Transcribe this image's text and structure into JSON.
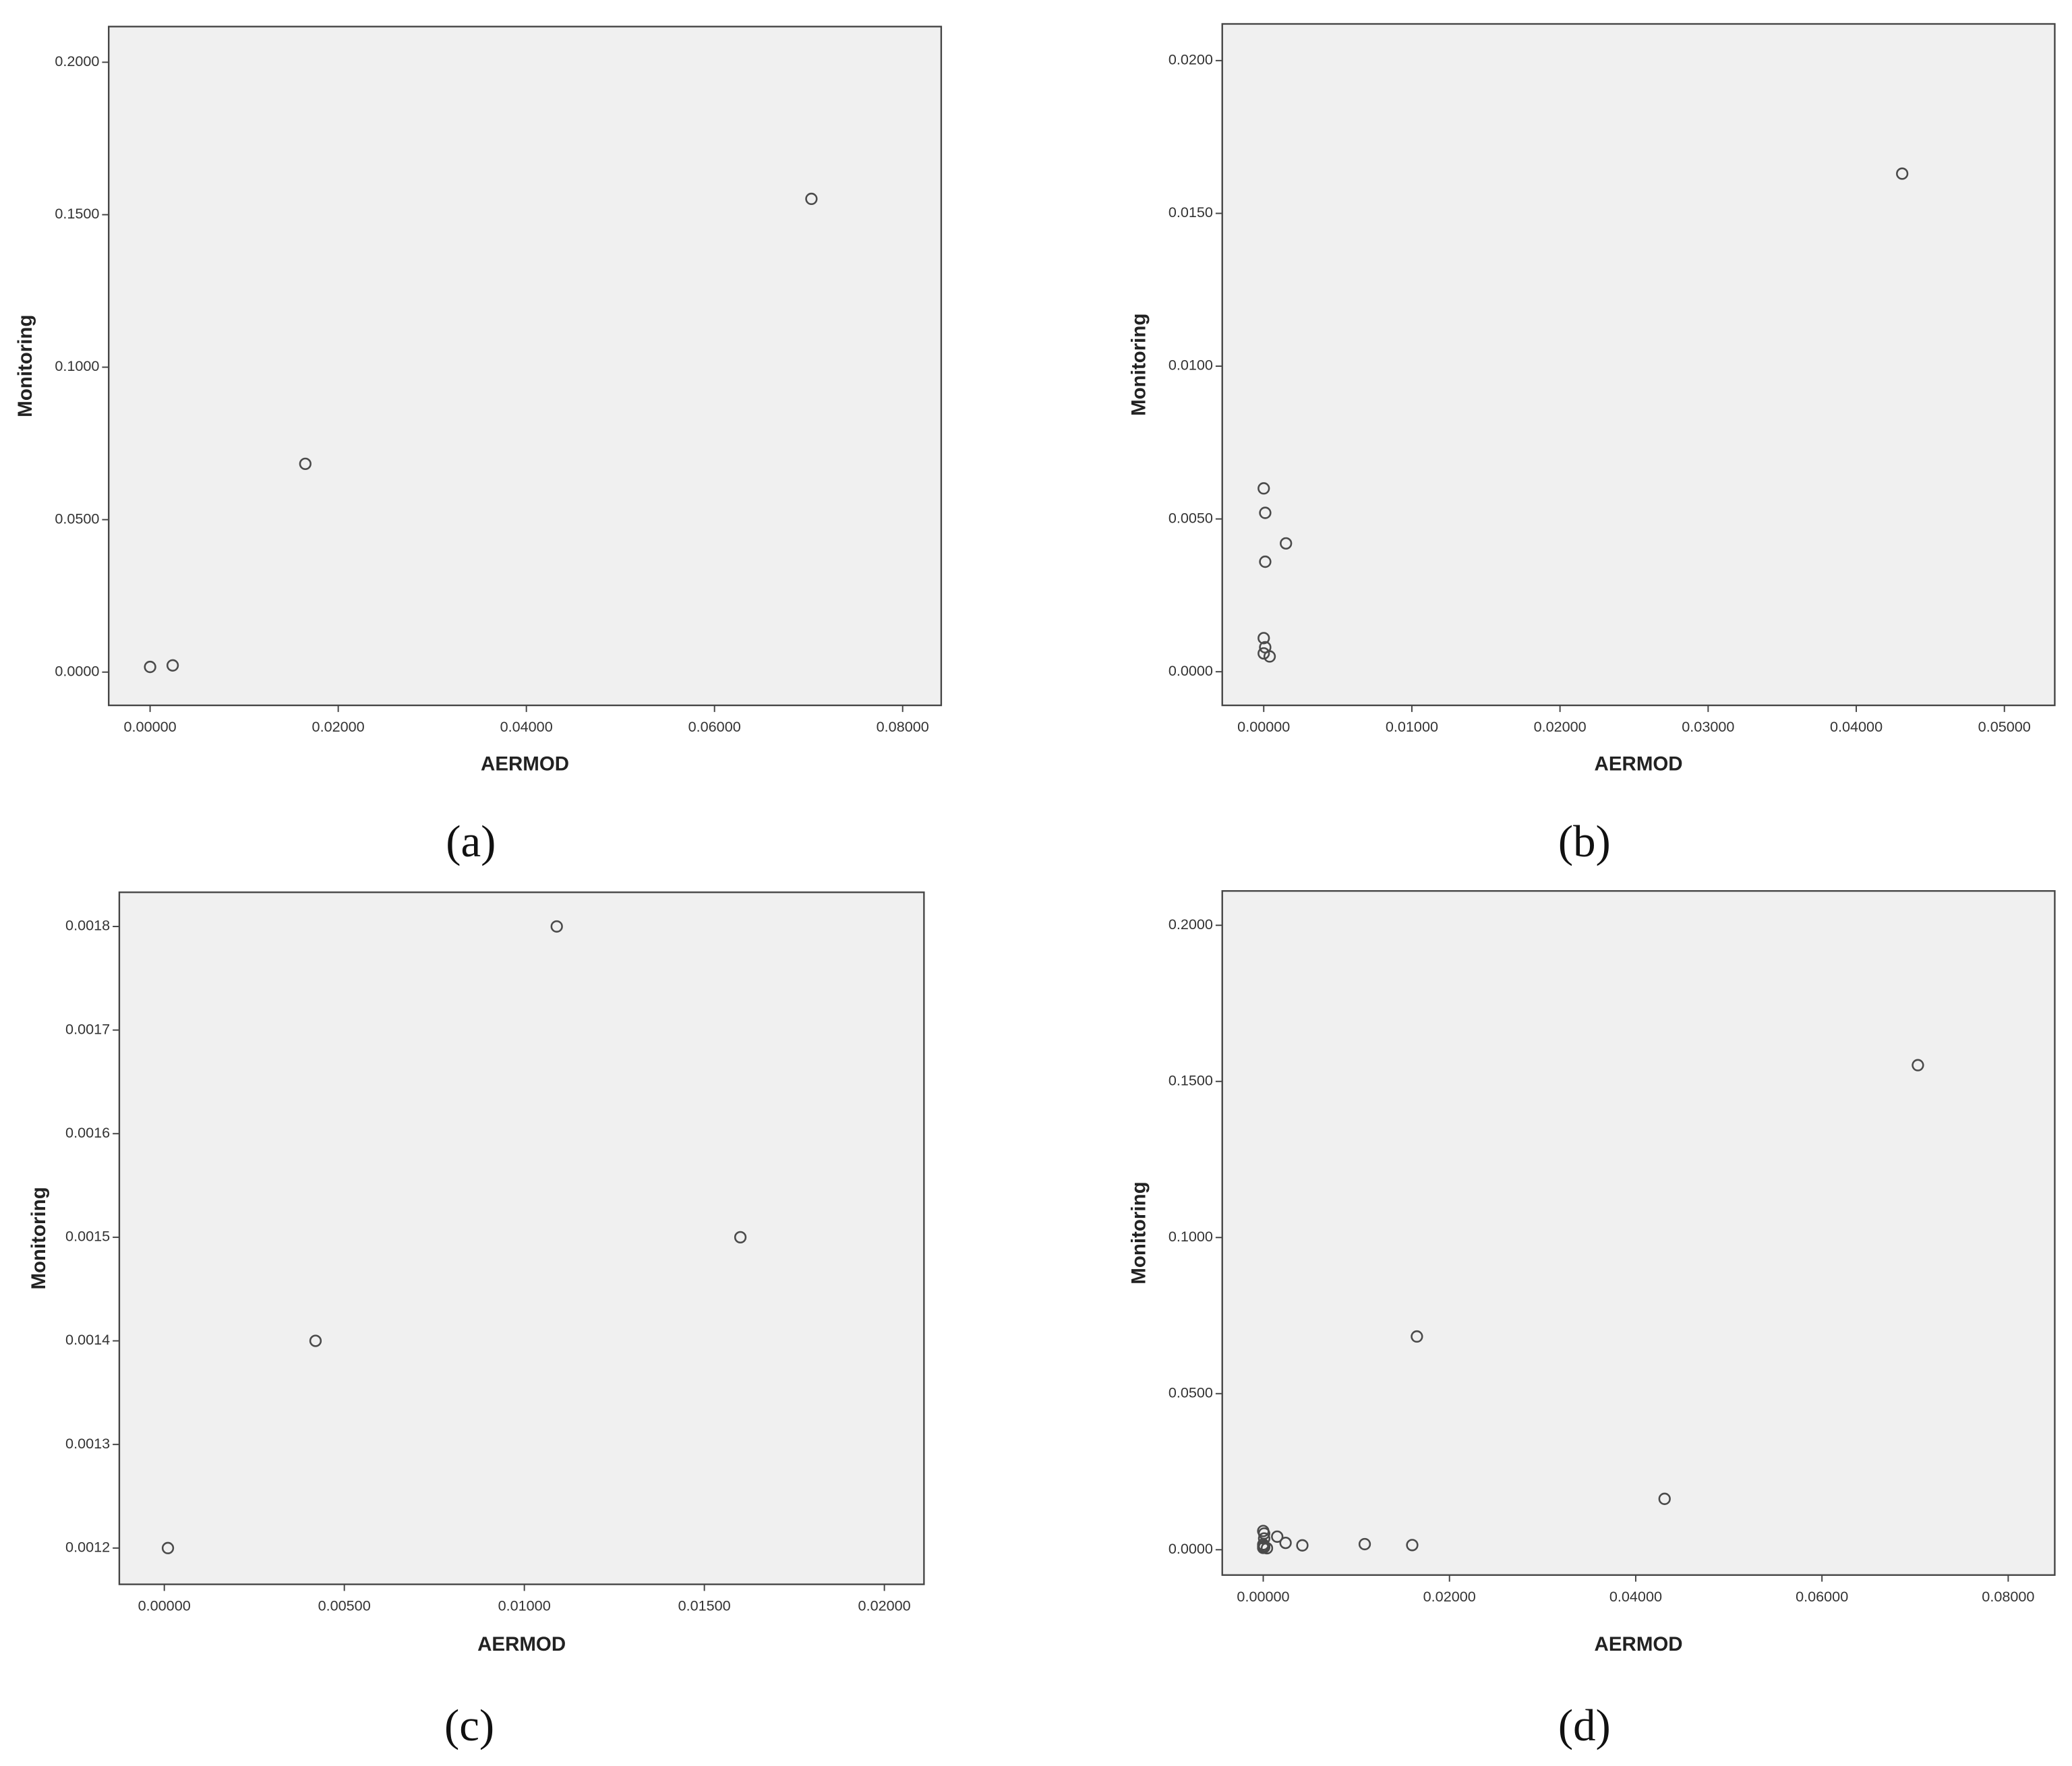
{
  "chart_data": [
    {
      "type": "scatter",
      "label": "(a)",
      "x_label": "AERMOD",
      "y_label": "Monitoring",
      "color": "#4a4a4a",
      "background": "#f0f0f0",
      "x": [
        0.0,
        0.0024,
        0.0165,
        0.0703
      ],
      "values": [
        0.0017,
        0.0022,
        0.0683,
        0.1552
      ],
      "xlim": [
        -0.0044,
        0.0841
      ],
      "ylim": [
        -0.0109,
        0.2117
      ],
      "xticks": [
        {
          "value": 0,
          "label": "0.00000"
        },
        {
          "value": 0.02,
          "label": "0.02000"
        },
        {
          "value": 0.04,
          "label": "0.04000"
        },
        {
          "value": 0.06,
          "label": "0.06000"
        },
        {
          "value": 0.08,
          "label": "0.08000"
        }
      ],
      "yticks": [
        {
          "value": 0,
          "label": "0.0000"
        },
        {
          "value": 0.05,
          "label": "0.0500"
        },
        {
          "value": 0.1,
          "label": "0.1000"
        },
        {
          "value": 0.15,
          "label": "0.1500"
        },
        {
          "value": 0.2,
          "label": "0.2000"
        }
      ]
    },
    {
      "type": "scatter",
      "label": "(b)",
      "x_label": "AERMOD",
      "y_label": "Monitoring",
      "color": "#4a4a4a",
      "background": "#f0f0f0",
      "x": [
        0.0431,
        0.0,
        0.0001,
        0.0015,
        0.0001,
        0.0,
        0.0001,
        0.0,
        0.0004
      ],
      "values": [
        0.0163,
        0.006,
        0.0052,
        0.0042,
        0.0036,
        0.0011,
        0.0008,
        0.0006,
        0.0005
      ],
      "xlim": [
        -0.0028,
        0.0534
      ],
      "ylim": [
        -0.0011,
        0.0212
      ],
      "xticks": [
        {
          "value": 0,
          "label": "0.00000"
        },
        {
          "value": 0.01,
          "label": "0.01000"
        },
        {
          "value": 0.02,
          "label": "0.02000"
        },
        {
          "value": 0.03,
          "label": "0.03000"
        },
        {
          "value": 0.04,
          "label": "0.04000"
        },
        {
          "value": 0.05,
          "label": "0.05000"
        }
      ],
      "yticks": [
        {
          "value": 0,
          "label": "0.0000"
        },
        {
          "value": 0.005,
          "label": "0.0050"
        },
        {
          "value": 0.01,
          "label": "0.0100"
        },
        {
          "value": 0.015,
          "label": "0.0150"
        },
        {
          "value": 0.02,
          "label": "0.0200"
        }
      ]
    },
    {
      "type": "scatter",
      "label": "(c)",
      "x_label": "AERMOD",
      "y_label": "Monitoring",
      "color": "#4a4a4a",
      "background": "#f0f0f0",
      "x": [
        0.0001,
        0.0042,
        0.0109,
        0.016
      ],
      "values": [
        0.0012,
        0.0014,
        0.0018,
        0.0015
      ],
      "xlim": [
        -0.00125,
        0.0211
      ],
      "ylim": [
        0.001165,
        0.001833
      ],
      "xticks": [
        {
          "value": 0,
          "label": "0.00000"
        },
        {
          "value": 0.005,
          "label": "0.00500"
        },
        {
          "value": 0.01,
          "label": "0.01000"
        },
        {
          "value": 0.015,
          "label": "0.01500"
        },
        {
          "value": 0.02,
          "label": "0.02000"
        }
      ],
      "yticks": [
        0.0012,
        0.0013,
        0.0014,
        0.0015,
        0.0016,
        0.0017,
        0.0018
      ]
    },
    {
      "type": "scatter",
      "label": "(d)",
      "x_label": "AERMOD",
      "y_label": "Monitoring",
      "color": "#4a4a4a",
      "background": "#f0f0f0",
      "x": [
        0.0,
        0.0024,
        0.0165,
        0.0703,
        0.0431,
        0.0,
        0.0001,
        0.0015,
        0.0001,
        0.0,
        0.0001,
        0.0,
        0.0004,
        0.0001,
        0.0042,
        0.0109,
        0.016
      ],
      "values": [
        0.0017,
        0.0022,
        0.0683,
        0.1552,
        0.0163,
        0.006,
        0.0052,
        0.0042,
        0.0036,
        0.0011,
        0.0008,
        0.0006,
        0.0005,
        0.0012,
        0.0014,
        0.0018,
        0.0015
      ],
      "xlim": [
        -0.0044,
        0.085
      ],
      "ylim": [
        -0.0081,
        0.211
      ],
      "xticks": [
        {
          "value": 0,
          "label": "0.00000"
        },
        {
          "value": 0.02,
          "label": "0.02000"
        },
        {
          "value": 0.04,
          "label": "0.04000"
        },
        {
          "value": 0.06,
          "label": "0.06000"
        },
        {
          "value": 0.08,
          "label": "0.08000"
        }
      ],
      "yticks": [
        {
          "value": 0,
          "label": "0.0000"
        },
        {
          "value": 0.05,
          "label": "0.0500"
        },
        {
          "value": 0.1,
          "label": "0.1000"
        },
        {
          "value": 0.15,
          "label": "0.1500"
        },
        {
          "value": 0.2,
          "label": "0.2000"
        }
      ]
    }
  ]
}
